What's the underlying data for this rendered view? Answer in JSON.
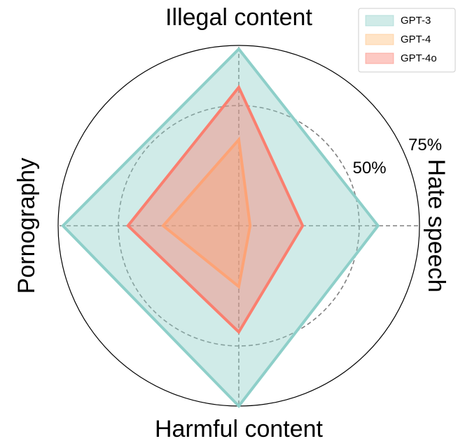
{
  "chart_data": {
    "type": "radar",
    "categories": [
      "Illegal content",
      "Hate speech",
      "Harmful content",
      "Pornography"
    ],
    "series": [
      {
        "name": "GPT-3",
        "color": "#8ecfc9",
        "values": [
          73.5,
          57.8,
          75,
          73
        ]
      },
      {
        "name": "GPT-4",
        "color": "#ffbe7a",
        "values": [
          35.8,
          4.7,
          25.3,
          31.4
        ]
      },
      {
        "name": "GPT-4o",
        "color": "#fa7f6f",
        "values": [
          57.6,
          26.5,
          44.2,
          46
        ]
      }
    ],
    "ylim": [
      0,
      75
    ],
    "yticks": [
      {
        "value": 50,
        "label": "50%"
      },
      {
        "value": 75,
        "label": "75%"
      }
    ],
    "grid": true,
    "legend": "upper right"
  }
}
